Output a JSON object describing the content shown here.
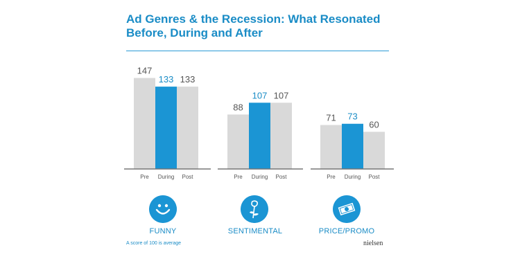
{
  "title": "Ad Genres & the Recession: What Resonated Before, During and After",
  "footnote": "A score of 100 is average",
  "brand": "nielsen",
  "colors": {
    "accent": "#1b95d4",
    "bar_gray": "#d9d9d9",
    "baseline": "#777777"
  },
  "chart_data": {
    "type": "bar",
    "title": "Ad Genres & the Recession: What Resonated Before, During and After",
    "xlabel": "",
    "ylabel": "",
    "ylim": [
      0,
      150
    ],
    "grid": false,
    "legend": "none",
    "categories": [
      "Pre",
      "During",
      "Post"
    ],
    "groups": [
      {
        "name": "FUNNY",
        "icon": "smiley-face-icon",
        "values": [
          147,
          133,
          133
        ]
      },
      {
        "name": "SENTIMENTAL",
        "icon": "rose-icon",
        "values": [
          88,
          107,
          107
        ]
      },
      {
        "name": "PRICE/PROMO",
        "icon": "money-bill-icon",
        "values": [
          71,
          73,
          60
        ]
      }
    ],
    "highlight_category": "During"
  }
}
